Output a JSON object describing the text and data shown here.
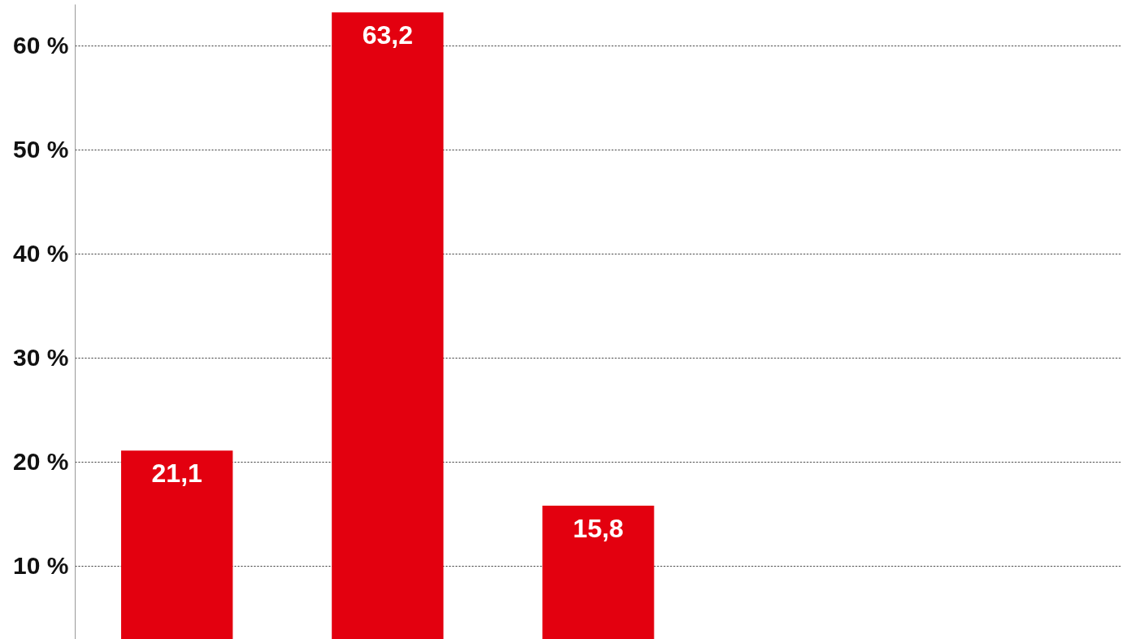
{
  "chart_data": {
    "type": "bar",
    "categories": [
      null,
      null,
      null,
      null,
      null
    ],
    "values": [
      21.1,
      63.2,
      15.8,
      null,
      null
    ],
    "value_labels": [
      "21,1",
      "63,2",
      "15,8",
      null,
      null
    ],
    "color": "#e3000f",
    "ylim": [
      3,
      64
    ],
    "yticks": [
      {
        "value": 10,
        "label": "10 %"
      },
      {
        "value": 20,
        "label": "20 %"
      },
      {
        "value": 30,
        "label": "30 %"
      },
      {
        "value": 40,
        "label": "40 %"
      },
      {
        "value": 50,
        "label": "50 %"
      },
      {
        "value": 60,
        "label": "60 %"
      }
    ],
    "grid": "y",
    "tick_labels": "y"
  }
}
